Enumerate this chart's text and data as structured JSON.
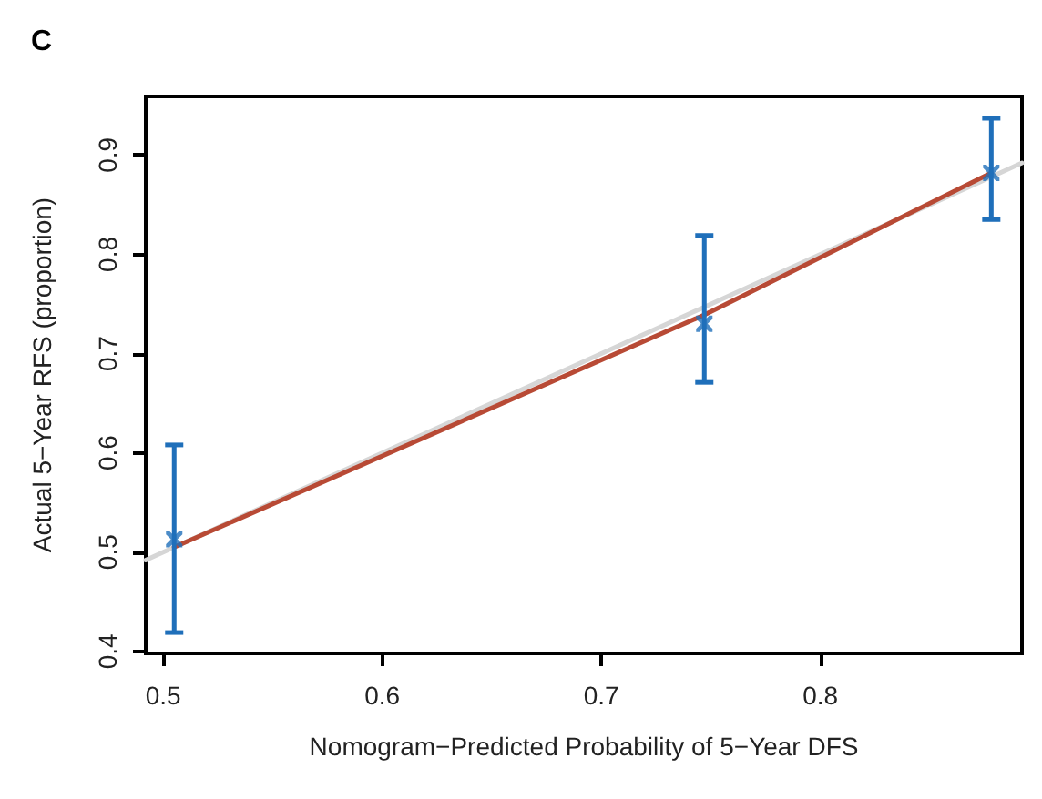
{
  "chart_data": {
    "type": "scatter",
    "title": "C",
    "xlabel": "Nomogram−Predicted Probability of 5−Year DFS",
    "ylabel": "Actual 5−Year RFS (proportion)",
    "xlim": [
      0.492,
      0.892
    ],
    "ylim": [
      0.398,
      0.959
    ],
    "xticks": [
      0.5,
      0.6,
      0.7,
      0.8
    ],
    "yticks": [
      0.4,
      0.5,
      0.6,
      0.7,
      0.8,
      0.9
    ],
    "grid": false,
    "series": [
      {
        "type": "line",
        "color": "#d6d6d6",
        "x": [
          0.492,
          0.892
        ],
        "values": [
          0.492,
          0.892
        ],
        "marker": "none"
      },
      {
        "type": "line",
        "color": "#b84a35",
        "x": [
          0.505,
          0.747,
          0.878
        ],
        "values": [
          0.505,
          0.739,
          0.882
        ],
        "marker": "none"
      },
      {
        "color": "#1f6fba",
        "x": [
          0.505,
          0.747,
          0.878
        ],
        "values": [
          0.513,
          0.73,
          0.882
        ],
        "errors": [
          [
            0.419,
            0.608
          ],
          [
            0.671,
            0.819
          ],
          [
            0.835,
            0.937
          ]
        ],
        "marker": "cross"
      }
    ]
  }
}
